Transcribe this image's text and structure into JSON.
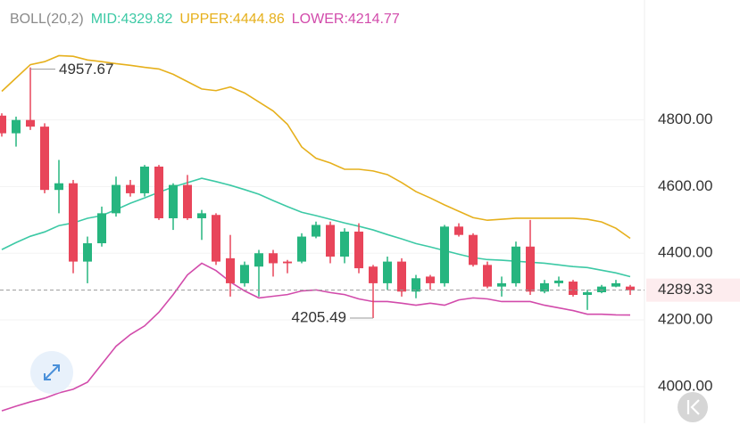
{
  "chart_data": {
    "type": "candlestick",
    "indicator": "BOLL(20,2)",
    "up_color": "#26b57f",
    "down_color": "#e8455a",
    "open": [
      4813,
      4760,
      4800,
      4780,
      4590,
      4610,
      4375,
      4430,
      4520,
      4605,
      4580,
      4660,
      4505,
      4605,
      4505,
      4515,
      4385,
      4310,
      4360,
      4400,
      4375,
      4375,
      4450,
      4485,
      4390,
      4465,
      4360,
      4310,
      4375,
      4285,
      4330,
      4310,
      4480,
      4455,
      4365,
      4300,
      4310,
      4420,
      4285,
      4310,
      4315,
      4275,
      4283,
      4300,
      4300
    ],
    "high": [
      4820,
      4810,
      4957.67,
      4790,
      4680,
      4620,
      4450,
      4540,
      4630,
      4620,
      4665,
      4665,
      4610,
      4635,
      4530,
      4520,
      4455,
      4375,
      4410,
      4410,
      4380,
      4460,
      4495,
      4495,
      4475,
      4490,
      4365,
      4390,
      4385,
      4335,
      4335,
      4485,
      4490,
      4460,
      4375,
      4330,
      4435,
      4500,
      4320,
      4330,
      4320,
      4290,
      4305,
      4320,
      4305
    ],
    "low": [
      4750,
      4720,
      4770,
      4580,
      4520,
      4340,
      4310,
      4420,
      4510,
      4570,
      4570,
      4500,
      4470,
      4500,
      4440,
      4365,
      4270,
      4300,
      4270,
      4330,
      4340,
      4370,
      4445,
      4370,
      4370,
      4340,
      4205.49,
      4290,
      4270,
      4265,
      4290,
      4300,
      4450,
      4360,
      4295,
      4270,
      4300,
      4275,
      4280,
      4300,
      4270,
      4230,
      4280,
      4298,
      4275
    ],
    "close": [
      4760,
      4800,
      4780,
      4590,
      4610,
      4375,
      4430,
      4520,
      4605,
      4580,
      4660,
      4505,
      4605,
      4505,
      4520,
      4375,
      4310,
      4365,
      4400,
      4370,
      4370,
      4450,
      4485,
      4390,
      4465,
      4355,
      4310,
      4375,
      4285,
      4325,
      4310,
      4480,
      4455,
      4365,
      4300,
      4310,
      4420,
      4285,
      4310,
      4318,
      4275,
      4283,
      4300,
      4310,
      4289.33
    ],
    "series": [
      {
        "name": "MID:",
        "color": "#3cc9a5",
        "values": [
          4411,
          4432,
          4451,
          4464,
          4483,
          4491,
          4505,
          4513,
          4531,
          4550,
          4566,
          4583,
          4599,
          4612,
          4625,
          4615,
          4604,
          4591,
          4577,
          4558,
          4540,
          4523,
          4513,
          4502,
          4491,
          4481,
          4470,
          4456,
          4443,
          4429,
          4419,
          4408,
          4397,
          4387,
          4381,
          4379,
          4376,
          4373,
          4370,
          4365,
          4360,
          4357,
          4349,
          4341,
          4329.82
        ]
      },
      {
        "name": "UPPER:",
        "color": "#e6b01c",
        "values": [
          4886,
          4926,
          4966,
          4975,
          4993,
          4991,
          4980,
          4975,
          4969,
          4964,
          4958,
          4953,
          4937,
          4915,
          4893,
          4888,
          4899,
          4881,
          4854,
          4827,
          4787,
          4719,
          4685,
          4671,
          4652,
          4652,
          4647,
          4636,
          4612,
          4585,
          4566,
          4545,
          4526,
          4507,
          4499,
          4502,
          4505,
          4505,
          4505,
          4505,
          4505,
          4502,
          4494,
          4475,
          4444.86
        ]
      },
      {
        "name": "LOWER:",
        "color": "#d24bab",
        "values": [
          3927,
          3941,
          3954,
          3965,
          3981,
          3992,
          4013,
          4067,
          4121,
          4156,
          4182,
          4223,
          4276,
          4335,
          4370,
          4348,
          4314,
          4287,
          4266,
          4271,
          4276,
          4287,
          4290,
          4282,
          4276,
          4263,
          4255,
          4255,
          4250,
          4244,
          4250,
          4244,
          4260,
          4266,
          4263,
          4255,
          4255,
          4255,
          4244,
          4236,
          4228,
          4217,
          4217,
          4215,
          4214.77
        ]
      }
    ],
    "ylim": [
      3890,
      5160
    ],
    "yticks": [
      {
        "value": 4000,
        "label": "4000.00"
      },
      {
        "value": 4200,
        "label": "4200.00"
      },
      {
        "value": 4400,
        "label": "4400.00"
      },
      {
        "value": 4600,
        "label": "4600.00"
      },
      {
        "value": 4800,
        "label": "4800.00"
      }
    ],
    "grid": true
  }
}
